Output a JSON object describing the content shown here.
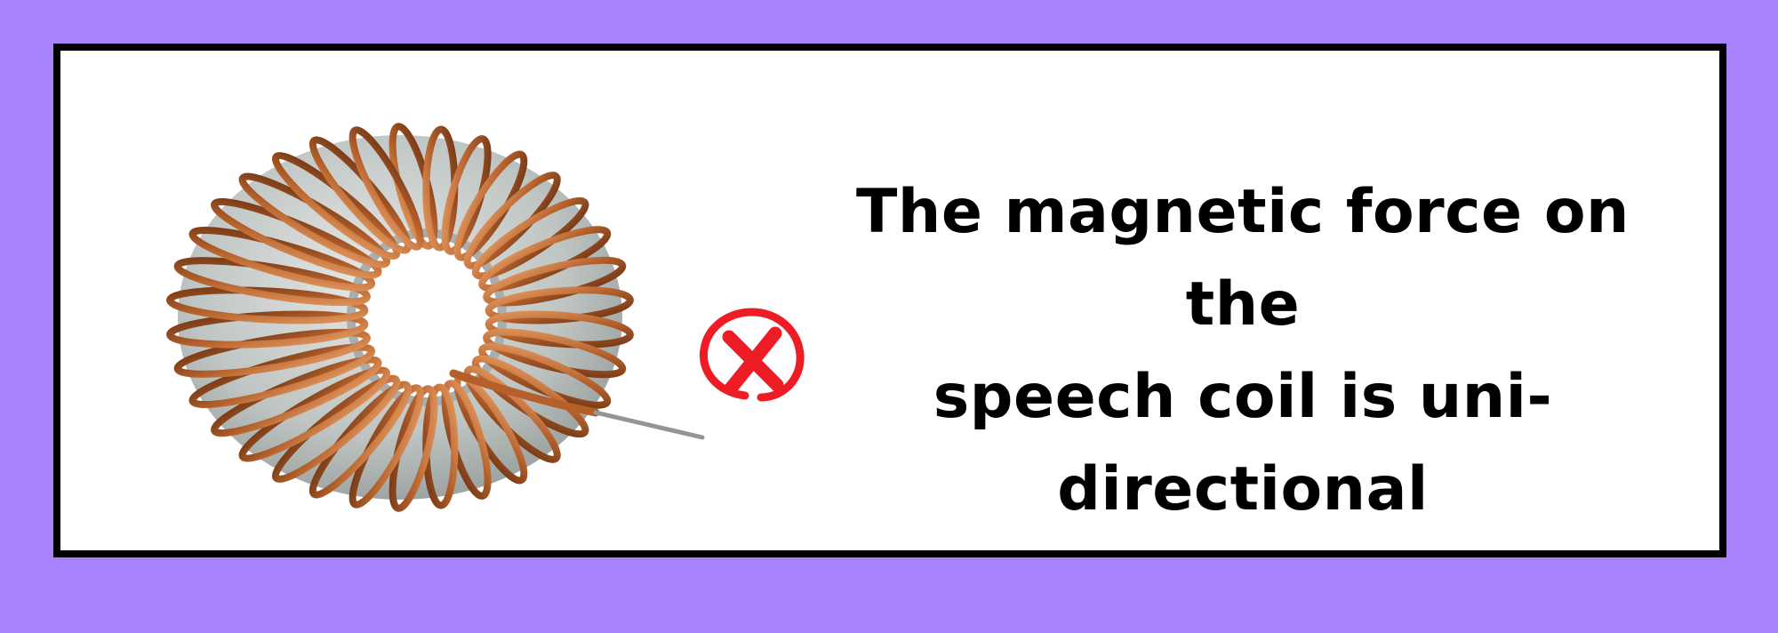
{
  "colors": {
    "background": "#a882fd",
    "card_background": "#ffffff",
    "card_border": "#000000",
    "text": "#000000",
    "mark": "#ee1c25",
    "copper": "#b8632e",
    "core": "#c6cbc9"
  },
  "figure": {
    "image_icon": "toroidal-coil-icon",
    "mark_icon": "x-mark-icon"
  },
  "statement": {
    "lines": [
      "The magnetic force on the",
      "speech coil is uni-",
      "directional"
    ]
  }
}
